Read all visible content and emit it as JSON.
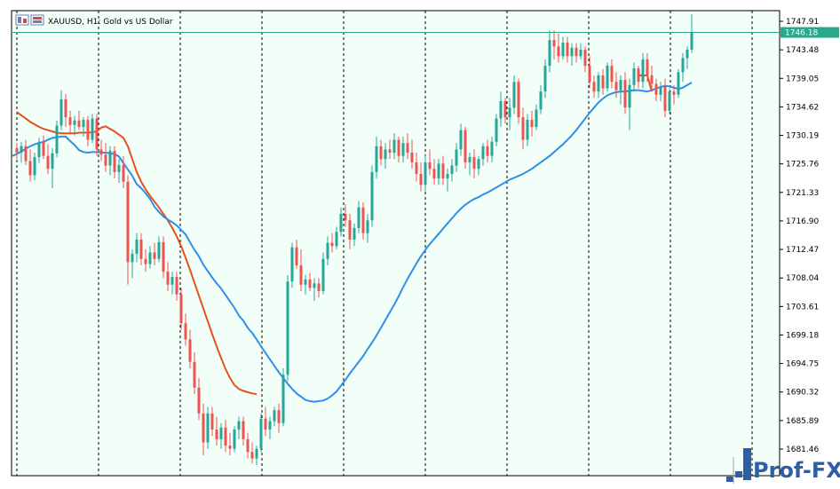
{
  "window": {
    "title": "XAUUSD, H1:  Gold vs US Dollar"
  },
  "watermark": "Prof-FX",
  "colors": {
    "background": "#f2fff8",
    "bull": "#26a69a",
    "bear": "#ef5350",
    "ma_fast": "#e8501a",
    "ma_slow": "#2e8ee8",
    "price_line": "#2aa88c",
    "grid": "#000000"
  },
  "chart_data": {
    "type": "candlestick",
    "symbol": "XAUUSD",
    "timeframe": "H1",
    "description": "Gold vs US Dollar",
    "current_price": "1746.18",
    "y_ticks": [
      "1747.91",
      "1743.48",
      "1739.05",
      "1734.62",
      "1730.19",
      "1725.76",
      "1721.33",
      "1716.90",
      "1712.47",
      "1708.04",
      "1703.61",
      "1699.18",
      "1694.75",
      "1690.32",
      "1685.89",
      "1681.46"
    ],
    "ylim": [
      1678.7,
      1749.6
    ],
    "grid": "vertical dashed separators",
    "candles": [
      [
        1728.2,
        1729.0,
        1726.5,
        1727.5
      ],
      [
        1727.5,
        1729.2,
        1726.0,
        1728.5
      ],
      [
        1728.5,
        1729.5,
        1725.6,
        1726.2
      ],
      [
        1726.2,
        1728.0,
        1723.0,
        1724.0
      ],
      [
        1724.0,
        1727.5,
        1723.2,
        1726.8
      ],
      [
        1726.8,
        1729.8,
        1725.9,
        1729.2
      ],
      [
        1729.2,
        1730.2,
        1726.5,
        1727.0
      ],
      [
        1727.0,
        1728.8,
        1724.2,
        1725.0
      ],
      [
        1725.0,
        1728.2,
        1722.0,
        1727.4
      ],
      [
        1727.4,
        1732.5,
        1726.8,
        1731.7
      ],
      [
        1731.7,
        1737.2,
        1731.0,
        1735.8
      ],
      [
        1735.8,
        1736.6,
        1731.5,
        1733.0
      ],
      [
        1733.0,
        1734.0,
        1730.5,
        1731.8
      ],
      [
        1731.8,
        1733.2,
        1730.2,
        1732.5
      ],
      [
        1732.5,
        1734.0,
        1731.0,
        1731.5
      ],
      [
        1731.5,
        1733.0,
        1730.0,
        1732.6
      ],
      [
        1732.6,
        1733.2,
        1728.5,
        1729.5
      ],
      [
        1729.5,
        1733.5,
        1729.0,
        1732.8
      ],
      [
        1732.8,
        1733.5,
        1727.0,
        1728.0
      ],
      [
        1728.0,
        1729.5,
        1726.2,
        1727.2
      ],
      [
        1727.2,
        1729.0,
        1724.5,
        1725.5
      ],
      [
        1725.5,
        1728.5,
        1724.0,
        1727.8
      ],
      [
        1727.8,
        1728.5,
        1723.5,
        1724.5
      ],
      [
        1724.5,
        1726.5,
        1722.8,
        1725.6
      ],
      [
        1725.6,
        1727.0,
        1722.0,
        1723.0
      ],
      [
        1723.0,
        1724.0,
        1707.0,
        1710.5
      ],
      [
        1710.5,
        1712.5,
        1708.0,
        1711.8
      ],
      [
        1711.8,
        1715.0,
        1710.5,
        1714.0
      ],
      [
        1714.0,
        1715.0,
        1710.0,
        1711.0
      ],
      [
        1711.0,
        1712.5,
        1709.0,
        1710.2
      ],
      [
        1710.2,
        1713.0,
        1709.5,
        1712.0
      ],
      [
        1712.0,
        1713.5,
        1710.0,
        1711.0
      ],
      [
        1711.0,
        1714.5,
        1710.5,
        1713.6
      ],
      [
        1713.6,
        1714.5,
        1708.0,
        1709.0
      ],
      [
        1709.0,
        1710.5,
        1706.0,
        1707.0
      ],
      [
        1707.0,
        1709.0,
        1705.5,
        1708.2
      ],
      [
        1708.2,
        1709.0,
        1704.5,
        1705.5
      ],
      [
        1705.5,
        1706.5,
        1700.0,
        1701.0
      ],
      [
        1701.0,
        1702.5,
        1697.5,
        1698.5
      ],
      [
        1698.5,
        1700.0,
        1694.0,
        1695.0
      ],
      [
        1695.0,
        1696.5,
        1690.0,
        1691.0
      ],
      [
        1691.0,
        1692.5,
        1686.0,
        1687.0
      ],
      [
        1687.0,
        1688.5,
        1680.5,
        1682.5
      ],
      [
        1682.5,
        1688.0,
        1681.5,
        1687.0
      ],
      [
        1687.0,
        1688.0,
        1683.5,
        1684.5
      ],
      [
        1684.5,
        1686.5,
        1682.0,
        1683.0
      ],
      [
        1683.0,
        1685.5,
        1681.5,
        1684.8
      ],
      [
        1684.8,
        1686.0,
        1681.0,
        1682.0
      ],
      [
        1682.0,
        1684.0,
        1680.5,
        1681.5
      ],
      [
        1681.5,
        1685.0,
        1681.0,
        1684.5
      ],
      [
        1684.5,
        1686.5,
        1683.0,
        1685.8
      ],
      [
        1685.8,
        1686.5,
        1682.0,
        1683.0
      ],
      [
        1683.0,
        1684.0,
        1680.0,
        1681.0
      ],
      [
        1681.0,
        1682.5,
        1679.2,
        1680.0
      ],
      [
        1680.0,
        1682.0,
        1679.0,
        1681.5
      ],
      [
        1681.5,
        1687.0,
        1681.0,
        1686.2
      ],
      [
        1686.2,
        1688.0,
        1683.5,
        1684.5
      ],
      [
        1684.5,
        1686.5,
        1683.0,
        1685.8
      ],
      [
        1685.8,
        1688.0,
        1685.0,
        1687.5
      ],
      [
        1687.5,
        1688.5,
        1684.0,
        1685.5
      ],
      [
        1685.5,
        1694.0,
        1685.0,
        1693.0
      ],
      [
        1693.0,
        1708.5,
        1692.0,
        1707.5
      ],
      [
        1707.5,
        1713.5,
        1706.5,
        1712.8
      ],
      [
        1712.8,
        1714.0,
        1709.5,
        1710.0
      ],
      [
        1710.0,
        1712.5,
        1706.0,
        1707.0
      ],
      [
        1707.0,
        1708.5,
        1705.5,
        1707.8
      ],
      [
        1707.8,
        1708.8,
        1706.0,
        1706.5
      ],
      [
        1706.5,
        1708.0,
        1704.5,
        1707.2
      ],
      [
        1707.2,
        1708.0,
        1705.0,
        1706.0
      ],
      [
        1706.0,
        1712.0,
        1705.5,
        1711.0
      ],
      [
        1711.0,
        1714.5,
        1710.0,
        1713.5
      ],
      [
        1713.5,
        1715.0,
        1712.0,
        1713.0
      ],
      [
        1713.0,
        1716.0,
        1712.5,
        1715.2
      ],
      [
        1715.2,
        1719.0,
        1714.5,
        1718.0
      ],
      [
        1718.0,
        1719.5,
        1716.0,
        1717.0
      ],
      [
        1717.0,
        1718.0,
        1712.5,
        1714.0
      ],
      [
        1714.0,
        1716.5,
        1713.0,
        1715.8
      ],
      [
        1715.8,
        1720.0,
        1715.0,
        1719.0
      ],
      [
        1719.0,
        1719.8,
        1714.0,
        1715.0
      ],
      [
        1715.0,
        1718.0,
        1713.5,
        1717.0
      ],
      [
        1717.0,
        1725.5,
        1716.0,
        1724.5
      ],
      [
        1724.5,
        1730.0,
        1723.5,
        1728.5
      ],
      [
        1728.5,
        1729.5,
        1725.5,
        1726.5
      ],
      [
        1726.5,
        1729.0,
        1725.0,
        1728.0
      ],
      [
        1728.0,
        1729.5,
        1726.5,
        1727.5
      ],
      [
        1727.5,
        1730.5,
        1726.5,
        1729.5
      ],
      [
        1729.5,
        1730.0,
        1726.0,
        1727.0
      ],
      [
        1727.0,
        1730.0,
        1726.0,
        1729.0
      ],
      [
        1729.0,
        1730.5,
        1726.5,
        1727.5
      ],
      [
        1727.5,
        1729.5,
        1725.0,
        1726.0
      ],
      [
        1726.0,
        1727.5,
        1723.0,
        1724.2
      ],
      [
        1724.2,
        1726.0,
        1721.5,
        1722.5
      ],
      [
        1722.5,
        1727.0,
        1721.5,
        1726.0
      ],
      [
        1726.0,
        1728.0,
        1724.0,
        1725.0
      ],
      [
        1725.0,
        1726.5,
        1722.5,
        1723.5
      ],
      [
        1723.5,
        1726.5,
        1722.5,
        1725.8
      ],
      [
        1725.8,
        1727.0,
        1722.5,
        1723.5
      ],
      [
        1723.5,
        1725.0,
        1721.5,
        1724.2
      ],
      [
        1724.2,
        1726.5,
        1723.0,
        1725.5
      ],
      [
        1725.5,
        1729.0,
        1724.5,
        1728.0
      ],
      [
        1728.0,
        1732.0,
        1727.0,
        1731.0
      ],
      [
        1731.0,
        1731.5,
        1725.0,
        1726.0
      ],
      [
        1726.0,
        1727.5,
        1724.0,
        1726.8
      ],
      [
        1726.8,
        1728.0,
        1723.5,
        1725.0
      ],
      [
        1725.0,
        1727.0,
        1724.0,
        1726.5
      ],
      [
        1726.5,
        1729.0,
        1725.5,
        1728.5
      ],
      [
        1728.5,
        1729.5,
        1726.0,
        1727.0
      ],
      [
        1727.0,
        1730.0,
        1726.0,
        1729.2
      ],
      [
        1729.2,
        1733.5,
        1728.5,
        1732.8
      ],
      [
        1732.8,
        1737.0,
        1731.5,
        1735.5
      ],
      [
        1735.5,
        1736.0,
        1732.0,
        1733.0
      ],
      [
        1733.0,
        1736.0,
        1731.0,
        1734.5
      ],
      [
        1734.5,
        1739.5,
        1733.5,
        1738.5
      ],
      [
        1738.5,
        1739.0,
        1732.0,
        1733.0
      ],
      [
        1733.0,
        1734.5,
        1728.0,
        1729.5
      ],
      [
        1729.5,
        1733.5,
        1728.5,
        1732.6
      ],
      [
        1732.6,
        1734.0,
        1730.0,
        1731.5
      ],
      [
        1731.5,
        1735.0,
        1731.0,
        1734.2
      ],
      [
        1734.2,
        1738.0,
        1733.5,
        1737.0
      ],
      [
        1737.0,
        1742.0,
        1736.0,
        1741.0
      ],
      [
        1741.0,
        1746.5,
        1740.0,
        1745.0
      ],
      [
        1745.0,
        1746.5,
        1742.0,
        1744.0
      ],
      [
        1744.0,
        1746.0,
        1741.5,
        1742.5
      ],
      [
        1742.5,
        1745.5,
        1742.0,
        1744.6
      ],
      [
        1744.6,
        1745.5,
        1741.5,
        1742.5
      ],
      [
        1742.5,
        1744.5,
        1741.0,
        1743.8
      ],
      [
        1743.8,
        1744.5,
        1741.5,
        1742.5
      ],
      [
        1742.5,
        1744.5,
        1742.0,
        1743.5
      ],
      [
        1743.5,
        1744.0,
        1740.0,
        1741.0
      ],
      [
        1741.0,
        1742.5,
        1737.5,
        1738.5
      ],
      [
        1738.5,
        1739.5,
        1736.0,
        1737.0
      ],
      [
        1737.0,
        1740.0,
        1736.0,
        1739.5
      ],
      [
        1739.5,
        1740.5,
        1736.5,
        1737.5
      ],
      [
        1737.5,
        1741.5,
        1737.0,
        1741.0
      ],
      [
        1741.0,
        1742.0,
        1737.5,
        1738.5
      ],
      [
        1738.5,
        1740.0,
        1736.0,
        1737.2
      ],
      [
        1737.2,
        1739.5,
        1735.0,
        1738.8
      ],
      [
        1738.8,
        1740.0,
        1733.5,
        1734.5
      ],
      [
        1734.5,
        1739.0,
        1731.0,
        1738.0
      ],
      [
        1738.0,
        1741.5,
        1737.0,
        1740.6
      ],
      [
        1740.6,
        1741.0,
        1737.5,
        1738.5
      ],
      [
        1738.5,
        1743.0,
        1737.5,
        1742.0
      ],
      [
        1742.0,
        1743.0,
        1738.5,
        1739.5
      ],
      [
        1739.5,
        1741.0,
        1737.0,
        1738.2
      ],
      [
        1738.2,
        1739.0,
        1735.5,
        1736.5
      ],
      [
        1736.5,
        1738.5,
        1735.5,
        1737.8
      ],
      [
        1737.8,
        1739.0,
        1733.0,
        1734.0
      ],
      [
        1734.0,
        1737.5,
        1733.5,
        1737.0
      ],
      [
        1737.0,
        1738.0,
        1735.0,
        1736.5
      ],
      [
        1736.5,
        1740.5,
        1736.0,
        1740.0
      ],
      [
        1740.0,
        1743.0,
        1738.5,
        1742.2
      ],
      [
        1742.2,
        1744.0,
        1740.5,
        1743.5
      ],
      [
        1743.5,
        1749.0,
        1743.0,
        1746.18
      ]
    ],
    "ma_fast": [
      1733.8,
      1733.3,
      1732.8,
      1732.3,
      1731.9,
      1731.5,
      1731.2,
      1731.0,
      1730.8,
      1730.6,
      1730.5,
      1730.5,
      1730.5,
      1730.5,
      1730.6,
      1730.6,
      1730.6,
      1730.7,
      1730.8,
      1731.4,
      1731.6,
      1731.2,
      1730.8,
      1730.3,
      1729.8,
      1728.5,
      1726.5,
      1724.5,
      1723.0,
      1721.8,
      1720.8,
      1719.9,
      1719.0,
      1718.0,
      1717.0,
      1715.8,
      1714.5,
      1713.0,
      1711.2,
      1709.3,
      1707.3,
      1705.3,
      1703.3,
      1701.3,
      1699.3,
      1697.4,
      1695.6,
      1693.9,
      1692.5,
      1691.4,
      1690.8,
      1690.5,
      1690.3,
      1690.1,
      1690.0
    ],
    "ma_slow": [
      1727.0,
      1727.3,
      1727.7,
      1728.1,
      1728.5,
      1728.8,
      1729.0,
      1729.2,
      1729.5,
      1729.8,
      1729.9,
      1730.0,
      1730.0,
      1729.3,
      1728.7,
      1727.9,
      1727.6,
      1727.5,
      1727.6,
      1727.6,
      1727.5,
      1727.5,
      1727.4,
      1727.3,
      1726.9,
      1725.9,
      1724.9,
      1723.9,
      1722.6,
      1722.0,
      1721.2,
      1720.3,
      1719.1,
      1718.3,
      1717.6,
      1717.1,
      1716.7,
      1716.2,
      1715.5,
      1714.8,
      1713.6,
      1712.4,
      1711.4,
      1710.1,
      1709.1,
      1708.1,
      1707.2,
      1706.4,
      1705.4,
      1704.4,
      1703.4,
      1702.2,
      1701.4,
      1700.3,
      1699.5,
      1698.5,
      1697.4,
      1696.4,
      1695.4,
      1694.4,
      1693.4,
      1692.5,
      1691.6,
      1690.8,
      1690.1,
      1689.6,
      1689.1,
      1688.9,
      1688.8,
      1688.9,
      1689.0,
      1689.3,
      1689.8,
      1690.4,
      1691.3,
      1692.2,
      1693.2,
      1694.1,
      1695.0,
      1695.9,
      1697.0,
      1698.0,
      1699.1,
      1700.3,
      1701.5,
      1702.7,
      1703.9,
      1705.2,
      1706.6,
      1707.9,
      1709.1,
      1710.3,
      1711.4,
      1712.4,
      1713.3,
      1714.1,
      1714.9,
      1715.7,
      1716.5,
      1717.3,
      1718.1,
      1718.8,
      1719.4,
      1719.9,
      1720.3,
      1720.6,
      1721.0,
      1721.3,
      1721.7,
      1722.1,
      1722.5,
      1722.9,
      1723.3,
      1723.6,
      1723.9,
      1724.2,
      1724.6,
      1725.0,
      1725.5,
      1726.0,
      1726.5,
      1727.0,
      1727.6,
      1728.2,
      1728.8,
      1729.5,
      1730.2,
      1731.0,
      1731.9,
      1732.8,
      1733.7,
      1734.5,
      1735.3,
      1735.9,
      1736.4,
      1736.7,
      1736.9,
      1737.0,
      1737.0,
      1737.1,
      1737.2,
      1737.2,
      1737.1,
      1737.0,
      1737.2,
      1737.5,
      1737.7,
      1737.9,
      1737.8,
      1737.6,
      1737.4,
      1737.6,
      1738.0,
      1738.4
    ],
    "ma_fast_tail": [
      1739.5,
      1739.5,
      1739.5,
      1737.0
    ]
  }
}
